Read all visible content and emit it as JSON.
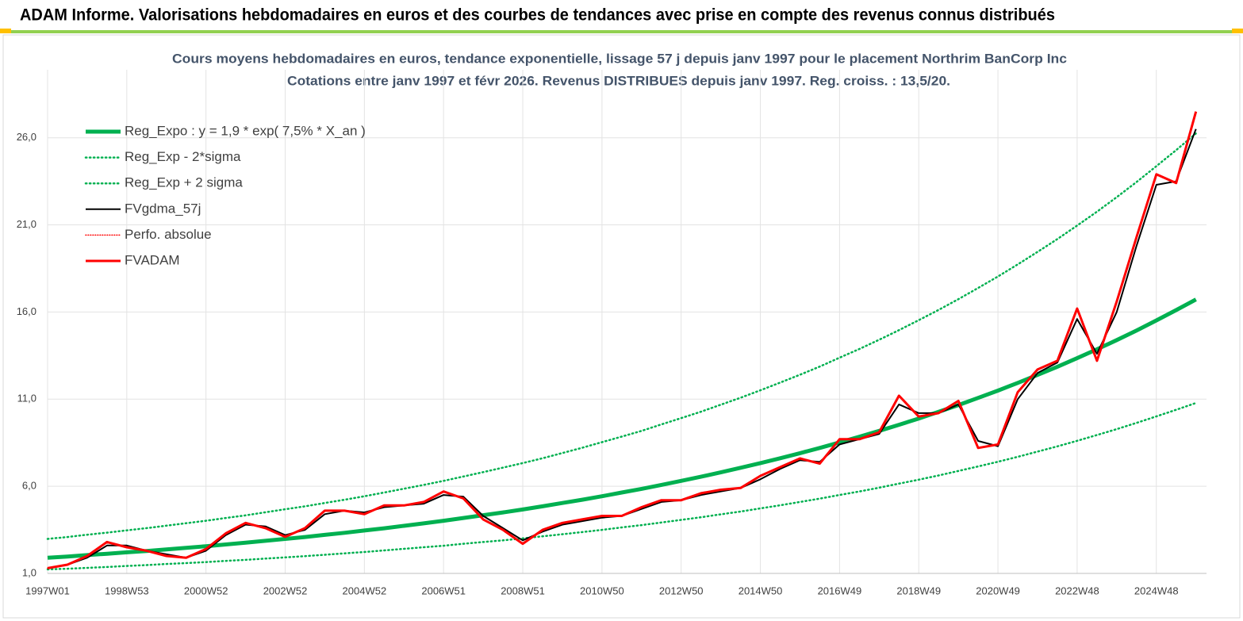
{
  "header": {
    "title": "ADAM Informe. Valorisations hebdomadaires en euros et des courbes de tendances avec prise en compte des revenus connus distribués"
  },
  "chart_data": {
    "type": "line",
    "title": "Cours moyens hebdomadaires en euros, tendance exponentielle, lissage 57 j depuis janv 1997 pour le placement Northrim BanCorp Inc",
    "subtitle": "Cotations entre janv 1997 et févr 2026. Revenus DISTRIBUES depuis janv 1997. Reg. croiss. : 13,5/20.",
    "categories": [
      "1997W01",
      null,
      null,
      null,
      "1998W53",
      null,
      null,
      null,
      "2000W52",
      null,
      null,
      null,
      "2002W52",
      null,
      null,
      null,
      "2004W52",
      null,
      null,
      null,
      "2006W51",
      null,
      null,
      null,
      "2008W51",
      null,
      null,
      null,
      "2010W50",
      null,
      null,
      null,
      "2012W50",
      null,
      null,
      null,
      "2014W50",
      null,
      null,
      null,
      "2016W49",
      null,
      null,
      null,
      "2018W49",
      null,
      null,
      null,
      "2020W49",
      null,
      null,
      null,
      "2022W48",
      null,
      null,
      null,
      "2024W48",
      null,
      null
    ],
    "ylim": [
      1,
      29.9
    ],
    "yticks": [
      {
        "value": 1,
        "label": "1,0"
      },
      {
        "value": 6,
        "label": "6,0"
      },
      {
        "value": 11,
        "label": "11,0"
      },
      {
        "value": 16,
        "label": "16,0"
      },
      {
        "value": 21,
        "label": "21,0"
      },
      {
        "value": 26,
        "label": "26,0"
      }
    ],
    "grid": true,
    "legend": "top-left",
    "series": [
      {
        "name": "Reg_Expo : y = 1,9 * exp( 7,5% *  X_an )",
        "color": "#00b050",
        "dash": "solid",
        "width": 5,
        "values": [
          1.9,
          1.97,
          2.05,
          2.13,
          2.21,
          2.29,
          2.38,
          2.47,
          2.56,
          2.66,
          2.76,
          2.87,
          2.98,
          3.09,
          3.21,
          3.33,
          3.46,
          3.59,
          3.73,
          3.87,
          4.02,
          4.18,
          4.34,
          4.5,
          4.67,
          4.85,
          5.04,
          5.23,
          5.43,
          5.64,
          5.85,
          6.08,
          6.31,
          6.55,
          6.8,
          7.06,
          7.33,
          7.61,
          7.9,
          8.2,
          8.52,
          8.84,
          9.18,
          9.53,
          9.89,
          10.27,
          10.66,
          11.07,
          11.49,
          11.93,
          12.39,
          12.86,
          13.35,
          13.86,
          14.39,
          14.94,
          15.52,
          16.11,
          16.72
        ]
      },
      {
        "name": "Reg_Exp - 2*sigma",
        "color": "#00b050",
        "dash": "dotted",
        "width": 2.5,
        "values": [
          1.23,
          1.27,
          1.32,
          1.37,
          1.43,
          1.48,
          1.54,
          1.59,
          1.65,
          1.72,
          1.78,
          1.85,
          1.92,
          1.99,
          2.07,
          2.15,
          2.23,
          2.32,
          2.41,
          2.5,
          2.59,
          2.7,
          2.8,
          2.9,
          3.01,
          3.13,
          3.25,
          3.37,
          3.5,
          3.64,
          3.77,
          3.92,
          4.07,
          4.22,
          4.39,
          4.55,
          4.73,
          4.91,
          5.1,
          5.29,
          5.5,
          5.7,
          5.92,
          6.15,
          6.38,
          6.62,
          6.88,
          7.14,
          7.41,
          7.69,
          7.99,
          8.29,
          8.61,
          8.94,
          9.28,
          9.64,
          10.01,
          10.39,
          10.78
        ]
      },
      {
        "name": "Reg_Exp + 2 sigma",
        "color": "#00b050",
        "dash": "dotted",
        "width": 2.5,
        "values": [
          2.98,
          3.09,
          3.22,
          3.34,
          3.47,
          3.6,
          3.74,
          3.88,
          4.02,
          4.18,
          4.33,
          4.51,
          4.68,
          4.85,
          5.04,
          5.23,
          5.43,
          5.64,
          5.86,
          6.08,
          6.31,
          6.56,
          6.81,
          7.07,
          7.33,
          7.61,
          7.91,
          8.21,
          8.53,
          8.85,
          9.18,
          9.55,
          9.91,
          10.28,
          10.68,
          11.08,
          11.51,
          11.95,
          12.4,
          12.87,
          13.38,
          13.88,
          14.41,
          14.96,
          15.53,
          16.12,
          16.74,
          17.38,
          18.04,
          18.73,
          19.45,
          20.19,
          20.96,
          21.76,
          22.59,
          23.46,
          24.37,
          25.29,
          26.25
        ]
      },
      {
        "name": "FVgdma_57j",
        "color": "#000000",
        "dash": "solid",
        "width": 2,
        "values": [
          1.3,
          1.5,
          1.9,
          2.6,
          2.6,
          2.3,
          2.1,
          1.9,
          2.3,
          3.2,
          3.8,
          3.7,
          3.2,
          3.5,
          4.4,
          4.6,
          4.5,
          4.8,
          4.9,
          5.0,
          5.5,
          5.4,
          4.3,
          3.6,
          2.9,
          3.4,
          3.8,
          4.0,
          4.2,
          4.3,
          4.7,
          5.1,
          5.2,
          5.5,
          5.7,
          5.9,
          6.4,
          7.0,
          7.5,
          7.4,
          8.4,
          8.7,
          9.0,
          10.7,
          10.2,
          10.2,
          10.7,
          8.6,
          8.3,
          11.0,
          12.5,
          13.1,
          15.6,
          13.6,
          16.0,
          19.8,
          23.3,
          23.5,
          26.5
        ]
      },
      {
        "name": "Perfo. absolue",
        "color": "#ff0000",
        "dash": "dotted",
        "width": 1.5,
        "values": [
          1.3,
          1.5,
          2.0,
          2.8,
          2.5,
          2.3,
          2.0,
          1.9,
          2.4,
          3.3,
          3.9,
          3.6,
          3.1,
          3.6,
          4.6,
          4.6,
          4.4,
          4.9,
          4.9,
          5.1,
          5.7,
          5.3,
          4.1,
          3.5,
          2.7,
          3.5,
          3.9,
          4.1,
          4.3,
          4.3,
          4.8,
          5.2,
          5.2,
          5.6,
          5.8,
          5.9,
          6.6,
          7.1,
          7.6,
          7.3,
          8.7,
          8.7,
          9.1,
          11.2,
          10.0,
          10.2,
          10.9,
          8.2,
          8.4,
          11.4,
          12.7,
          13.2,
          16.2,
          13.2,
          16.6,
          20.3,
          23.9,
          23.4,
          27.5
        ]
      },
      {
        "name": "FVADAM",
        "color": "#ff0000",
        "dash": "solid",
        "width": 3,
        "values": [
          1.3,
          1.5,
          2.0,
          2.8,
          2.5,
          2.3,
          2.0,
          1.9,
          2.4,
          3.3,
          3.9,
          3.6,
          3.1,
          3.6,
          4.6,
          4.6,
          4.4,
          4.9,
          4.9,
          5.1,
          5.7,
          5.3,
          4.1,
          3.5,
          2.7,
          3.5,
          3.9,
          4.1,
          4.3,
          4.3,
          4.8,
          5.2,
          5.2,
          5.6,
          5.8,
          5.9,
          6.6,
          7.1,
          7.6,
          7.3,
          8.7,
          8.7,
          9.1,
          11.2,
          10.0,
          10.2,
          10.9,
          8.2,
          8.4,
          11.4,
          12.7,
          13.2,
          16.2,
          13.2,
          16.6,
          20.3,
          23.9,
          23.4,
          27.5
        ]
      }
    ]
  }
}
